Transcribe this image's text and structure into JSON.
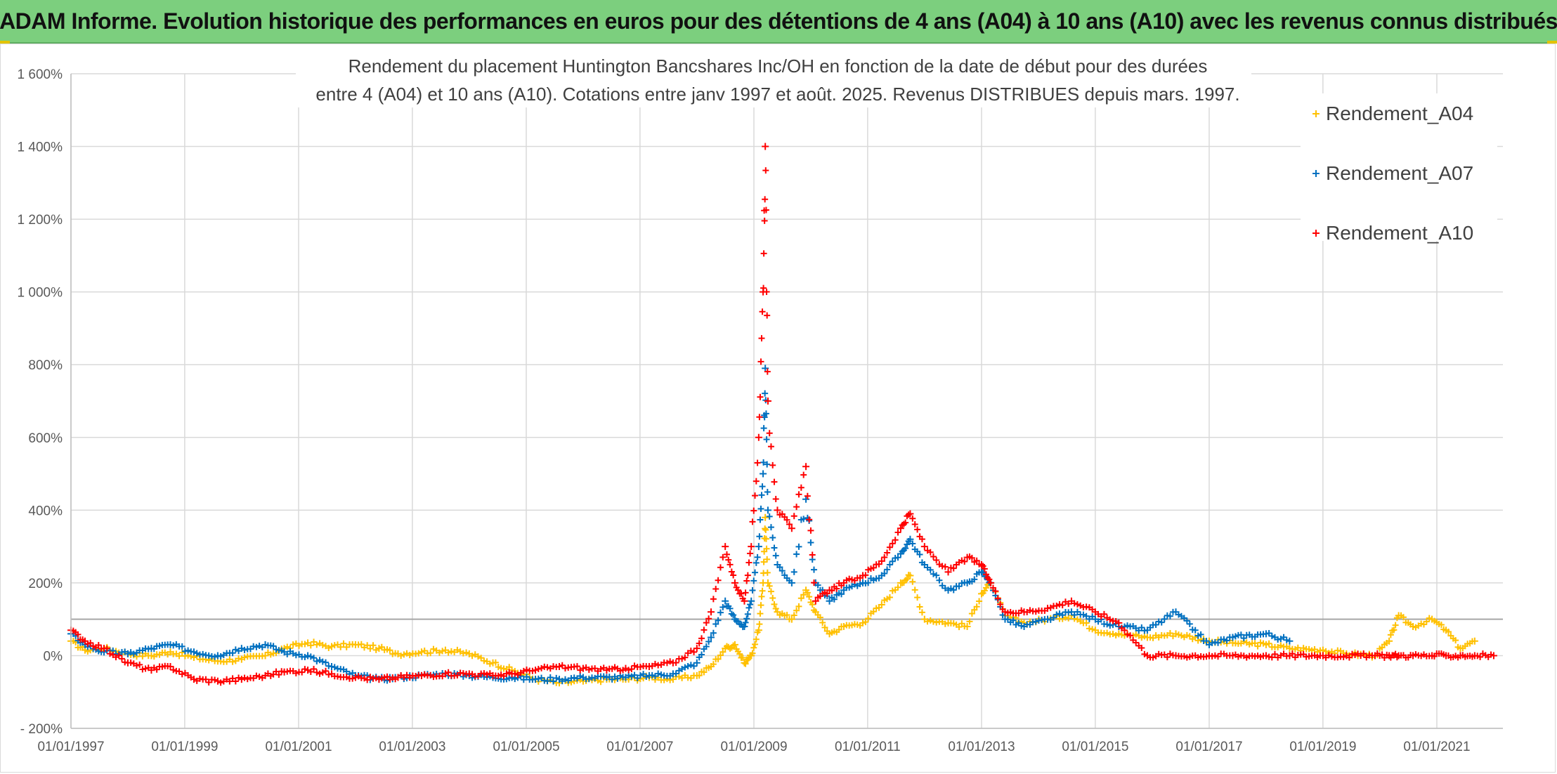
{
  "banner": {
    "title": "ADAM Informe. Evolution historique des performances en euros pour des détentions de 4 ans (A04) à 10 ans (A10) avec les revenus connus distribués",
    "background": "#7ccf7e"
  },
  "chart_data": {
    "type": "scatter",
    "title_lines": [
      "Rendement du placement Huntington Bancshares Inc/OH en fonction de la date de début pour des durées",
      "entre 4 (A04) et 10 ans (A10). Cotations entre janv 1997 et août. 2025. Revenus DISTRIBUES depuis mars. 1997."
    ],
    "xlabel": "",
    "ylabel": "",
    "x_range": [
      "1997-01-01",
      "2022-03-01"
    ],
    "ylim": [
      -200,
      1600
    ],
    "y_ticks": [
      -200,
      0,
      200,
      400,
      600,
      800,
      1000,
      1200,
      1400,
      1600
    ],
    "y_tick_labels": [
      "- 200%",
      "0%",
      "200%",
      "400%",
      "600%",
      "800%",
      "1 000%",
      "1 200%",
      "1 400%",
      "1 600%"
    ],
    "x_ticks": [
      "1997-01-01",
      "1999-01-01",
      "2001-01-01",
      "2003-01-01",
      "2005-01-01",
      "2007-01-01",
      "2009-01-01",
      "2011-01-01",
      "2013-01-01",
      "2015-01-01",
      "2017-01-01",
      "2019-01-01",
      "2021-01-01"
    ],
    "x_tick_labels": [
      "01/01/1997",
      "01/01/1999",
      "01/01/2001",
      "01/01/2003",
      "01/01/2005",
      "01/01/2007",
      "01/01/2009",
      "01/01/2011",
      "01/01/2013",
      "01/01/2015",
      "01/01/2017",
      "01/01/2019",
      "01/01/2021"
    ],
    "reference_line_y": 100,
    "grid": true,
    "legend_position": "top-right",
    "marker": "+",
    "series": [
      {
        "name": "Rendement_A04",
        "color": "#ffc000",
        "points": [
          [
            "1997-01-01",
            40
          ],
          [
            "1997-04-01",
            15
          ],
          [
            "1997-08-01",
            20
          ],
          [
            "1998-01-01",
            5
          ],
          [
            "1998-06-01",
            0
          ],
          [
            "1998-10-01",
            10
          ],
          [
            "1999-03-01",
            -5
          ],
          [
            "1999-08-01",
            -15
          ],
          [
            "2000-01-01",
            -10
          ],
          [
            "2000-06-01",
            0
          ],
          [
            "2000-10-01",
            20
          ],
          [
            "2001-03-01",
            35
          ],
          [
            "2001-08-01",
            25
          ],
          [
            "2002-01-01",
            30
          ],
          [
            "2002-06-01",
            20
          ],
          [
            "2002-10-01",
            5
          ],
          [
            "2003-03-01",
            10
          ],
          [
            "2003-08-01",
            15
          ],
          [
            "2004-01-01",
            5
          ],
          [
            "2004-06-01",
            -20
          ],
          [
            "2004-10-01",
            -40
          ],
          [
            "2005-03-01",
            -65
          ],
          [
            "2005-08-01",
            -75
          ],
          [
            "2006-01-01",
            -70
          ],
          [
            "2006-06-01",
            -65
          ],
          [
            "2006-10-01",
            -65
          ],
          [
            "2007-03-01",
            -60
          ],
          [
            "2007-08-01",
            -65
          ],
          [
            "2008-01-01",
            -55
          ],
          [
            "2008-04-01",
            -30
          ],
          [
            "2008-07-01",
            20
          ],
          [
            "2008-09-01",
            30
          ],
          [
            "2008-11-01",
            -20
          ],
          [
            "2008-12-15",
            0
          ],
          [
            "2009-02-01",
            70
          ],
          [
            "2009-03-01",
            200
          ],
          [
            "2009-03-15",
            380
          ],
          [
            "2009-04-01",
            200
          ],
          [
            "2009-06-01",
            120
          ],
          [
            "2009-09-01",
            100
          ],
          [
            "2009-12-01",
            180
          ],
          [
            "2010-02-01",
            120
          ],
          [
            "2010-05-01",
            60
          ],
          [
            "2010-08-01",
            80
          ],
          [
            "2010-12-01",
            90
          ],
          [
            "2011-04-01",
            140
          ],
          [
            "2011-08-01",
            200
          ],
          [
            "2011-10-01",
            220
          ],
          [
            "2012-01-01",
            100
          ],
          [
            "2012-06-01",
            90
          ],
          [
            "2012-10-01",
            80
          ],
          [
            "2013-01-01",
            170
          ],
          [
            "2013-03-01",
            200
          ],
          [
            "2013-06-01",
            110
          ],
          [
            "2013-10-01",
            90
          ],
          [
            "2014-03-01",
            100
          ],
          [
            "2014-08-01",
            110
          ],
          [
            "2015-01-01",
            70
          ],
          [
            "2015-06-01",
            60
          ],
          [
            "2015-12-01",
            50
          ],
          [
            "2016-06-01",
            60
          ],
          [
            "2017-01-01",
            40
          ],
          [
            "2017-06-01",
            35
          ],
          [
            "2018-01-01",
            30
          ],
          [
            "2018-06-01",
            20
          ],
          [
            "2019-01-01",
            15
          ],
          [
            "2019-06-01",
            5
          ],
          [
            "2019-12-01",
            0
          ],
          [
            "2020-03-01",
            40
          ],
          [
            "2020-05-01",
            110
          ],
          [
            "2020-08-01",
            80
          ],
          [
            "2020-12-01",
            100
          ],
          [
            "2021-03-01",
            70
          ],
          [
            "2021-06-01",
            20
          ],
          [
            "2021-09-01",
            40
          ]
        ]
      },
      {
        "name": "Rendement_A07",
        "color": "#0070c0",
        "points": [
          [
            "1997-01-01",
            60
          ],
          [
            "1997-04-01",
            30
          ],
          [
            "1997-08-01",
            10
          ],
          [
            "1998-01-01",
            5
          ],
          [
            "1998-06-01",
            20
          ],
          [
            "1998-10-01",
            30
          ],
          [
            "1999-03-01",
            10
          ],
          [
            "1999-08-01",
            0
          ],
          [
            "2000-01-01",
            20
          ],
          [
            "2000-06-01",
            30
          ],
          [
            "2000-10-01",
            10
          ],
          [
            "2001-03-01",
            0
          ],
          [
            "2001-08-01",
            -30
          ],
          [
            "2002-01-01",
            -55
          ],
          [
            "2002-06-01",
            -65
          ],
          [
            "2002-10-01",
            -60
          ],
          [
            "2003-03-01",
            -55
          ],
          [
            "2003-08-01",
            -50
          ],
          [
            "2004-01-01",
            -55
          ],
          [
            "2004-06-01",
            -60
          ],
          [
            "2004-10-01",
            -60
          ],
          [
            "2005-03-01",
            -65
          ],
          [
            "2005-08-01",
            -65
          ],
          [
            "2006-01-01",
            -60
          ],
          [
            "2006-06-01",
            -60
          ],
          [
            "2006-10-01",
            -60
          ],
          [
            "2007-03-01",
            -55
          ],
          [
            "2007-08-01",
            -50
          ],
          [
            "2008-01-01",
            -20
          ],
          [
            "2008-04-01",
            50
          ],
          [
            "2008-07-01",
            150
          ],
          [
            "2008-09-01",
            100
          ],
          [
            "2008-11-01",
            80
          ],
          [
            "2008-12-15",
            150
          ],
          [
            "2009-02-01",
            300
          ],
          [
            "2009-03-01",
            500
          ],
          [
            "2009-03-15",
            790
          ],
          [
            "2009-04-01",
            400
          ],
          [
            "2009-06-01",
            250
          ],
          [
            "2009-09-01",
            200
          ],
          [
            "2009-12-01",
            430
          ],
          [
            "2010-02-01",
            200
          ],
          [
            "2010-05-01",
            150
          ],
          [
            "2010-08-01",
            180
          ],
          [
            "2010-12-01",
            200
          ],
          [
            "2011-04-01",
            220
          ],
          [
            "2011-08-01",
            280
          ],
          [
            "2011-10-01",
            320
          ],
          [
            "2012-01-01",
            250
          ],
          [
            "2012-06-01",
            180
          ],
          [
            "2012-10-01",
            200
          ],
          [
            "2013-01-01",
            230
          ],
          [
            "2013-03-01",
            200
          ],
          [
            "2013-06-01",
            100
          ],
          [
            "2013-10-01",
            80
          ],
          [
            "2014-03-01",
            100
          ],
          [
            "2014-08-01",
            120
          ],
          [
            "2015-01-01",
            100
          ],
          [
            "2015-06-01",
            80
          ],
          [
            "2015-12-01",
            70
          ],
          [
            "2016-06-01",
            120
          ],
          [
            "2017-01-01",
            30
          ],
          [
            "2017-06-01",
            50
          ],
          [
            "2018-01-01",
            60
          ],
          [
            "2018-06-01",
            40
          ]
        ]
      },
      {
        "name": "Rendement_A10",
        "color": "#ff0000",
        "points": [
          [
            "1997-01-01",
            70
          ],
          [
            "1997-04-01",
            40
          ],
          [
            "1997-08-01",
            20
          ],
          [
            "1998-01-01",
            -20
          ],
          [
            "1998-06-01",
            -40
          ],
          [
            "1998-10-01",
            -30
          ],
          [
            "1999-03-01",
            -65
          ],
          [
            "1999-08-01",
            -70
          ],
          [
            "2000-01-01",
            -65
          ],
          [
            "2000-06-01",
            -55
          ],
          [
            "2000-10-01",
            -45
          ],
          [
            "2001-03-01",
            -40
          ],
          [
            "2001-08-01",
            -50
          ],
          [
            "2002-01-01",
            -60
          ],
          [
            "2002-06-01",
            -65
          ],
          [
            "2002-10-01",
            -60
          ],
          [
            "2003-03-01",
            -55
          ],
          [
            "2003-08-01",
            -50
          ],
          [
            "2004-01-01",
            -50
          ],
          [
            "2004-06-01",
            -55
          ],
          [
            "2004-10-01",
            -50
          ],
          [
            "2005-03-01",
            -40
          ],
          [
            "2005-08-01",
            -30
          ],
          [
            "2006-01-01",
            -35
          ],
          [
            "2006-06-01",
            -40
          ],
          [
            "2006-10-01",
            -35
          ],
          [
            "2007-03-01",
            -30
          ],
          [
            "2007-08-01",
            -20
          ],
          [
            "2008-01-01",
            20
          ],
          [
            "2008-04-01",
            120
          ],
          [
            "2008-07-01",
            300
          ],
          [
            "2008-09-01",
            200
          ],
          [
            "2008-11-01",
            150
          ],
          [
            "2008-12-15",
            300
          ],
          [
            "2009-02-01",
            600
          ],
          [
            "2009-03-01",
            1000
          ],
          [
            "2009-03-15",
            1400
          ],
          [
            "2009-04-01",
            700
          ],
          [
            "2009-06-01",
            400
          ],
          [
            "2009-09-01",
            350
          ],
          [
            "2009-12-01",
            520
          ],
          [
            "2010-02-01",
            150
          ],
          [
            "2010-05-01",
            180
          ],
          [
            "2010-08-01",
            200
          ],
          [
            "2010-12-01",
            220
          ],
          [
            "2011-04-01",
            260
          ],
          [
            "2011-08-01",
            350
          ],
          [
            "2011-10-01",
            390
          ],
          [
            "2012-01-01",
            300
          ],
          [
            "2012-06-01",
            230
          ],
          [
            "2012-10-01",
            270
          ],
          [
            "2013-01-01",
            250
          ],
          [
            "2013-03-01",
            200
          ],
          [
            "2013-06-01",
            120
          ],
          [
            "2013-10-01",
            120
          ],
          [
            "2014-03-01",
            130
          ],
          [
            "2014-08-01",
            150
          ],
          [
            "2015-01-01",
            120
          ],
          [
            "2015-06-01",
            90
          ],
          [
            "2015-12-01",
            0
          ],
          [
            "2016-06-01",
            0
          ],
          [
            "2017-01-01",
            0
          ],
          [
            "2017-06-01",
            0
          ],
          [
            "2018-01-01",
            0
          ],
          [
            "2018-06-01",
            0
          ],
          [
            "2019-01-01",
            0
          ],
          [
            "2019-06-01",
            0
          ],
          [
            "2019-12-01",
            0
          ],
          [
            "2020-03-01",
            0
          ],
          [
            "2020-05-01",
            0
          ],
          [
            "2020-08-01",
            0
          ],
          [
            "2020-12-01",
            0
          ],
          [
            "2021-03-01",
            0
          ],
          [
            "2021-06-01",
            0
          ],
          [
            "2021-09-01",
            0
          ],
          [
            "2022-01-01",
            0
          ]
        ]
      }
    ]
  }
}
